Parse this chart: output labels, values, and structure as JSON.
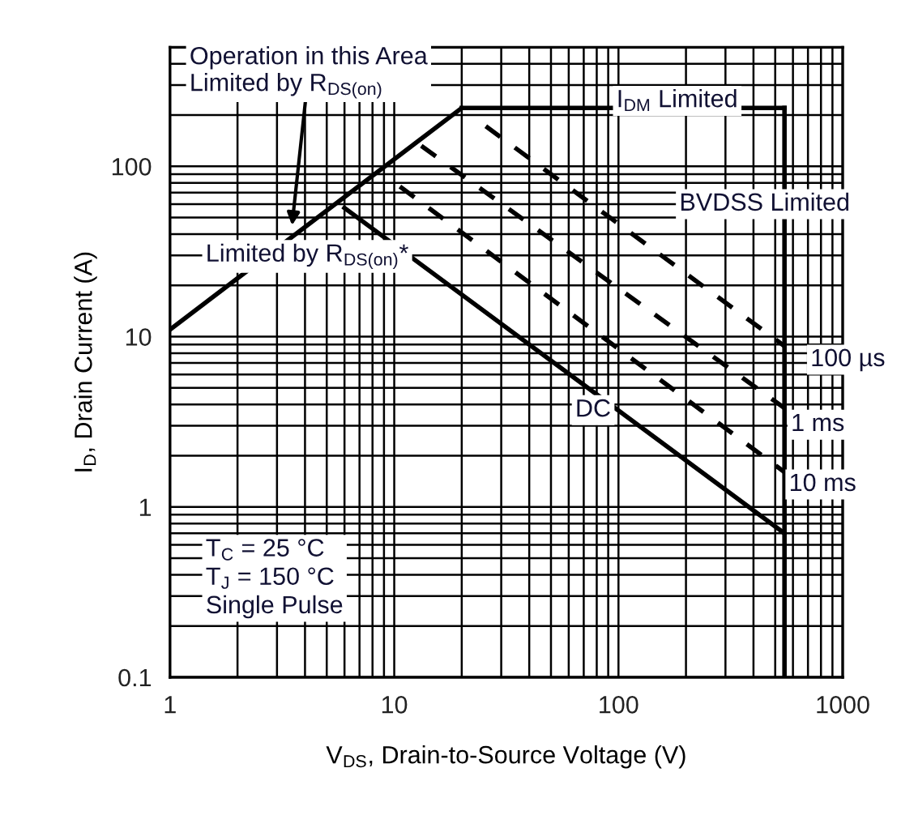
{
  "chart_data": {
    "type": "line",
    "xlabel": "V$_{DS}$, Drain-to-Source Voltage (V)",
    "ylabel": "I$_{D}$, Drain Current (A)",
    "log": "xy",
    "xlim": [
      1,
      1000
    ],
    "ylim": [
      0.1,
      500
    ],
    "xticks": [
      1,
      10,
      100,
      1000
    ],
    "yticks": [
      0.1,
      1,
      10,
      100
    ],
    "grid": true,
    "marker": "none",
    "series": [
      {
        "color": "#000000",
        "line_style": "solid",
        "x": [
          1,
          20
        ],
        "values": [
          11,
          220
        ]
      },
      {
        "name": "I$_{DM}$ Limited",
        "color": "#000000",
        "line_style": "solid",
        "x": [
          20,
          550
        ],
        "values": [
          220,
          220
        ]
      },
      {
        "name": "BVDSS Limited",
        "color": "#000000",
        "line_style": "solid",
        "x": [
          550,
          550
        ],
        "values": [
          220,
          0.1
        ]
      },
      {
        "name": "DC",
        "color": "#000000",
        "line_style": "solid",
        "x": [
          6,
          550
        ],
        "values": [
          57,
          0.7
        ]
      },
      {
        "name": "100 µs",
        "color": "#000000",
        "line_style": "dashed",
        "x": [
          25.6,
          550
        ],
        "values": [
          172,
          8.8
        ]
      },
      {
        "name": "1 ms",
        "color": "#000000",
        "line_style": "dashed",
        "x": [
          13.2,
          550
        ],
        "values": [
          132,
          3.8
        ]
      },
      {
        "name": "10 ms",
        "color": "#000000",
        "line_style": "dashed",
        "x": [
          10.6,
          550
        ],
        "values": [
          76,
          1.6
        ]
      }
    ],
    "annotations": [
      {
        "text": "Operation in this Area\nLimited by R$_{DS(on)}$",
        "x": 3.5,
        "y": 45
      },
      "Limited by R$_{DS(on)}$*",
      "T$_{C}$ = 25 °C\nT$_{J}$ = 150 °C\nSingle Pulse"
    ]
  }
}
